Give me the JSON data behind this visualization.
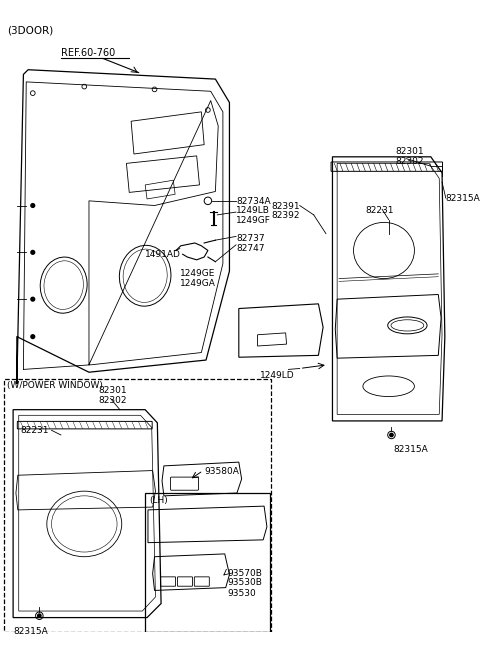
{
  "title": "(3DOOR)",
  "bg_color": "#ffffff",
  "line_color": "#000000",
  "labels": {
    "ref": "REF.60-760",
    "p82734A": "82734A",
    "p1249LB": "1249LB",
    "p1249GF": "1249GF",
    "p1491AD": "1491AD",
    "p82737": "82737",
    "p82747": "82747",
    "p1249GE": "1249GE",
    "p1249GA": "1249GA",
    "p82391": "82391",
    "p82392": "82392",
    "p82301a": "82301",
    "p82302a": "82302",
    "p82231a": "82231",
    "p82315Aa": "82315A",
    "p1249LD": "1249LD",
    "p82315Ab": "82315A",
    "pw_title": "(W/POWER WINDOW)",
    "p82301b": "82301",
    "p82302b": "82302",
    "p82231b": "82231",
    "p82315Ac": "82315A",
    "p93580A": "93580A",
    "lh_title": "(LH)",
    "p93570B": "93570B",
    "p93530B": "93530B",
    "p93530": "93530"
  }
}
